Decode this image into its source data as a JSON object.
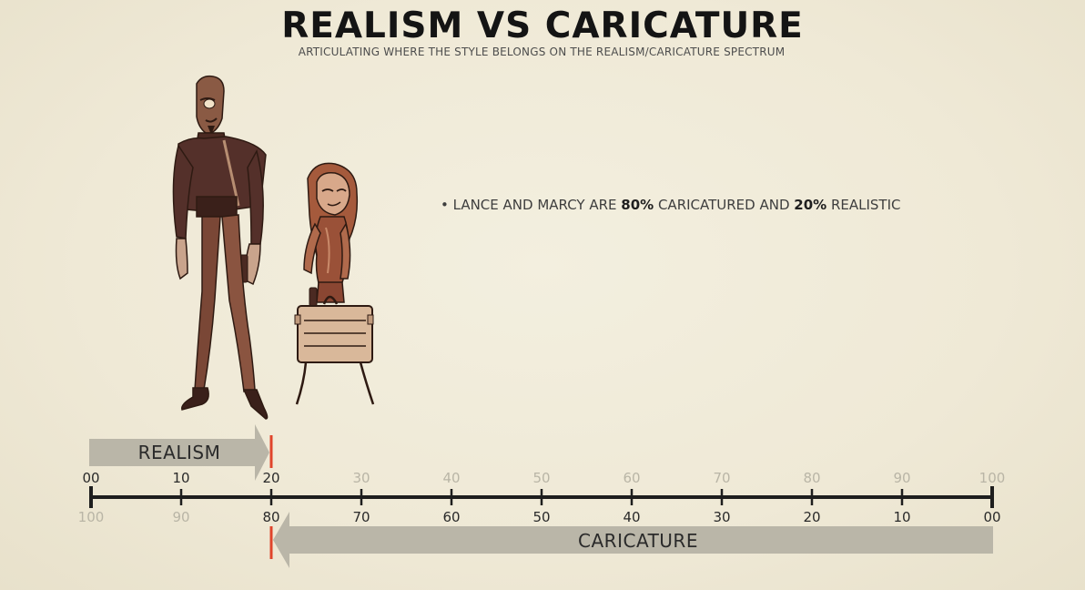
{
  "title": "REALISM VS CARICATURE",
  "subtitle": "ARTICULATING WHERE THE STYLE BELONGS ON THE REALISM/CARICATURE SPECTRUM",
  "bullet": {
    "prefix": "• LANCE AND MARCY ARE ",
    "caricature_pct": "80%",
    "mid": " CARICATURED AND ",
    "realism_pct": "20%",
    "suffix": " REALISTIC"
  },
  "realism_label": "REALISM",
  "caricature_label": "CARICATURE",
  "top_ticks": [
    "00",
    "10",
    "20",
    "30",
    "40",
    "50",
    "60",
    "70",
    "80",
    "90",
    "100"
  ],
  "bottom_ticks": [
    "100",
    "90",
    "80",
    "70",
    "60",
    "50",
    "40",
    "30",
    "20",
    "10",
    "00"
  ],
  "marker_value": 20,
  "colors": {
    "marker": "#e0452b",
    "arrow": "#bab6a8",
    "axis": "#1e1e1e",
    "tick_active": "#2a2a2a",
    "tick_faded": "#b9b5a6"
  }
}
